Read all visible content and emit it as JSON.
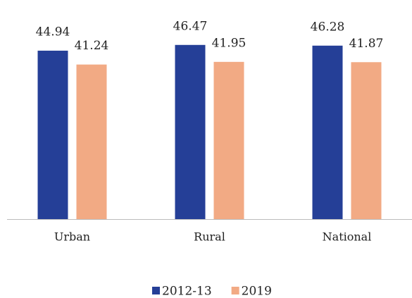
{
  "chart_data": {
    "type": "bar",
    "categories": [
      "Urban",
      "Rural",
      "National"
    ],
    "series": [
      {
        "name": "2012-13",
        "color": "#253f97",
        "values": [
          44.94,
          46.47,
          46.28
        ]
      },
      {
        "name": "2019",
        "color": "#f2aa84",
        "values": [
          41.24,
          41.95,
          41.87
        ]
      }
    ],
    "ylim": [
      0,
      50
    ]
  }
}
